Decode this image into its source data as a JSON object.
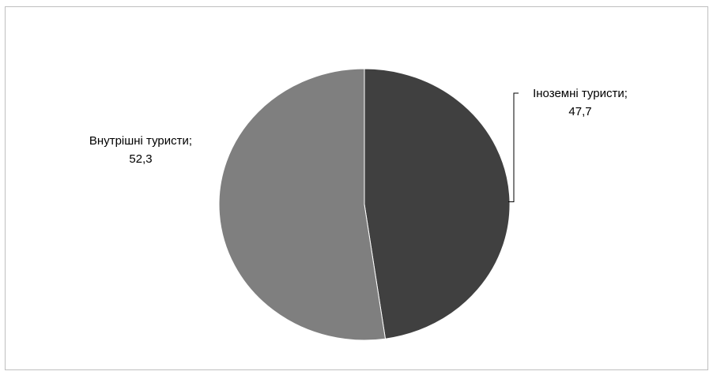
{
  "chart_data": {
    "type": "pie",
    "title": "",
    "slices": [
      {
        "label": "Іноземні туристи;",
        "value": 47.7,
        "value_text": "47,7",
        "color": "#404040"
      },
      {
        "label": "Внутрішні туристи;",
        "value": 52.3,
        "value_text": "52,3",
        "color": "#7f7f7f"
      }
    ],
    "start_angle": "12 o'clock",
    "direction": "clockwise",
    "legend": "none"
  }
}
